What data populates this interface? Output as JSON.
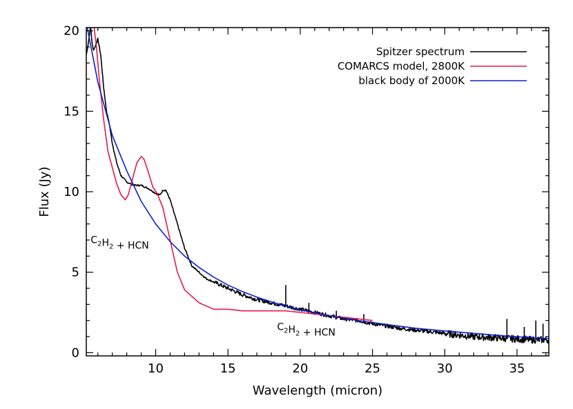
{
  "chart_data": {
    "type": "line",
    "title": "",
    "xlabel": "Wavelength (micron)",
    "ylabel": "Flux (Jy)",
    "xlim": [
      5.2,
      37.2
    ],
    "ylim": [
      -0.2,
      20.2
    ],
    "x_ticks": [
      10,
      15,
      20,
      25,
      30,
      35
    ],
    "y_ticks": [
      0,
      5,
      10,
      15,
      20
    ],
    "grid": false,
    "legend_position": "top-right",
    "colors": {
      "spitzer": "#000000",
      "comarcs": "#e8174a",
      "blackbody": "#0a1ed2"
    },
    "series": [
      {
        "name": "Spitzer spectrum",
        "color": "#000000",
        "noisy": true,
        "x": [
          5.2,
          5.35,
          5.5,
          5.6,
          5.7,
          5.8,
          6.0,
          6.2,
          6.4,
          6.6,
          6.8,
          7.0,
          7.3,
          7.6,
          8.0,
          8.5,
          9.0,
          9.5,
          10.0,
          10.3,
          10.5,
          10.7,
          11.0,
          11.5,
          12.0,
          12.5,
          13.0,
          13.5,
          14.0,
          15.0,
          16.0,
          17.0,
          18.0,
          19.0,
          20.0,
          21.0,
          22.0,
          23.0,
          24.0,
          25.0,
          26.0,
          27.0,
          28.0,
          29.0,
          30.0,
          31.0,
          32.0,
          33.0,
          34.0,
          35.0,
          36.0,
          37.2
        ],
        "y": [
          18.5,
          19.3,
          20.3,
          19.2,
          18.8,
          19.0,
          19.5,
          18.5,
          16.5,
          15.0,
          14.2,
          13.0,
          11.8,
          11.0,
          10.6,
          10.4,
          10.4,
          10.2,
          9.9,
          9.8,
          10.1,
          10.1,
          9.5,
          8.0,
          6.5,
          5.4,
          5.0,
          4.6,
          4.4,
          4.0,
          3.6,
          3.3,
          3.1,
          2.9,
          2.7,
          2.5,
          2.3,
          2.1,
          2.0,
          1.8,
          1.65,
          1.5,
          1.4,
          1.3,
          1.2,
          1.1,
          1.0,
          0.95,
          0.9,
          0.85,
          0.8,
          0.8
        ],
        "spikes": [
          [
            19.0,
            4.2
          ],
          [
            20.6,
            3.1
          ],
          [
            22.5,
            2.6
          ],
          [
            24.4,
            2.4
          ],
          [
            34.3,
            2.1
          ],
          [
            35.5,
            1.6
          ],
          [
            36.3,
            2.0
          ],
          [
            36.8,
            1.8
          ]
        ]
      },
      {
        "name": "COMARCS model, 2800K",
        "color": "#e8174a",
        "noisy": false,
        "x": [
          5.2,
          5.3,
          5.5,
          5.7,
          5.9,
          6.1,
          6.4,
          6.7,
          7.0,
          7.3,
          7.6,
          7.9,
          8.1,
          8.4,
          8.7,
          9.0,
          9.2,
          9.5,
          9.8,
          10.1,
          10.5,
          11.0,
          11.5,
          12.0,
          12.5,
          13.0,
          13.5,
          14.0,
          15.0,
          16.0,
          17.0,
          18.0,
          19.0,
          20.0,
          21.0,
          22.0,
          23.0,
          24.0,
          25.0
        ],
        "y": [
          20.5,
          20.7,
          20.3,
          20.5,
          19.0,
          17.0,
          14.5,
          12.5,
          11.5,
          10.5,
          9.8,
          9.5,
          9.8,
          10.8,
          11.8,
          12.2,
          12.0,
          11.2,
          10.3,
          9.9,
          9.0,
          7.0,
          5.0,
          3.9,
          3.5,
          3.1,
          2.9,
          2.7,
          2.7,
          2.6,
          2.6,
          2.6,
          2.6,
          2.5,
          2.4,
          2.3,
          2.2,
          2.1,
          2.0
        ]
      },
      {
        "name": "black body of 2000K",
        "color": "#0a1ed2",
        "noisy": false,
        "x": [
          5.2,
          6,
          7,
          8,
          9,
          10,
          11,
          12,
          13,
          14,
          15,
          16,
          17,
          18,
          19,
          20,
          22,
          24,
          26,
          28,
          30,
          32,
          34,
          36,
          37.2
        ],
        "y": [
          20.5,
          16.8,
          13.5,
          11.3,
          9.4,
          8.0,
          6.9,
          6.0,
          5.3,
          4.7,
          4.2,
          3.8,
          3.45,
          3.15,
          2.9,
          2.65,
          2.3,
          2.0,
          1.75,
          1.52,
          1.35,
          1.2,
          1.05,
          0.93,
          0.87
        ]
      }
    ],
    "annotations": [
      {
        "text_before": "C",
        "sub1": "2",
        "text_mid": "H",
        "sub2": "2",
        "text_after": " + HCN",
        "x": 5.5,
        "y": 6.8
      },
      {
        "text_before": "C",
        "sub1": "2",
        "text_mid": "H",
        "sub2": "2",
        "text_after": " + HCN",
        "x": 18.4,
        "y": 1.4
      }
    ]
  }
}
